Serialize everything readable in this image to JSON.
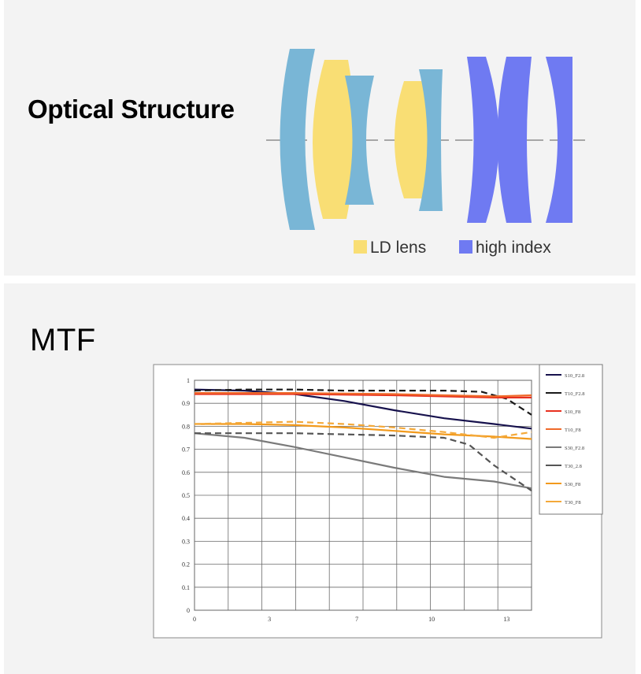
{
  "optical": {
    "title": "Optical Structure",
    "legend": [
      {
        "label": "LD lens",
        "color": "#f9de74"
      },
      {
        "label": "high index",
        "color": "#6f7af2"
      }
    ],
    "colors": {
      "standard": "#79b6d6",
      "ld": "#f9de74",
      "high_index": "#6f7af2"
    }
  },
  "mtf": {
    "title": "MTF"
  },
  "chart_data": {
    "type": "line",
    "title": "",
    "xlabel": "",
    "ylabel": "",
    "xlim": [
      0,
      13.5
    ],
    "ylim": [
      0,
      1
    ],
    "x_ticks": [
      "0",
      "3",
      "7",
      "10",
      "13"
    ],
    "x_tick_values": [
      0,
      3,
      6.5,
      9.5,
      12.5
    ],
    "y_ticks": [
      "0",
      "0.1",
      "0.2",
      "0.3",
      "0.4",
      "0.5",
      "0.6",
      "0.7",
      "0.8",
      "0.9",
      "1"
    ],
    "grid": true,
    "legend_position": "right",
    "series": [
      {
        "name": "S10_F2.8",
        "color": "#17124d",
        "dash": false,
        "x": [
          0,
          2,
          4,
          6,
          8,
          10,
          12,
          13.5
        ],
        "y": [
          0.96,
          0.955,
          0.94,
          0.91,
          0.87,
          0.835,
          0.81,
          0.79
        ]
      },
      {
        "name": "T10_F2.8",
        "color": "#1a1a1a",
        "dash": true,
        "x": [
          0,
          2,
          4,
          6,
          8,
          10,
          11.5,
          12.5,
          13.5
        ],
        "y": [
          0.955,
          0.96,
          0.96,
          0.955,
          0.955,
          0.955,
          0.95,
          0.92,
          0.85
        ]
      },
      {
        "name": "S10_F8",
        "color": "#e8301f",
        "dash": false,
        "x": [
          0,
          4,
          8,
          12,
          13.5
        ],
        "y": [
          0.94,
          0.94,
          0.935,
          0.925,
          0.925
        ]
      },
      {
        "name": "T10_F8",
        "color": "#ef6a2a",
        "dash": false,
        "x": [
          0,
          4,
          8,
          12,
          13.5
        ],
        "y": [
          0.945,
          0.945,
          0.94,
          0.93,
          0.935
        ]
      },
      {
        "name": "S30_F2.8",
        "color": "#7a7a7a",
        "dash": false,
        "x": [
          0,
          2,
          4,
          6,
          8,
          10,
          12,
          13.5
        ],
        "y": [
          0.77,
          0.75,
          0.71,
          0.665,
          0.62,
          0.58,
          0.56,
          0.53
        ]
      },
      {
        "name": "T30_2.8",
        "color": "#555555",
        "dash": true,
        "x": [
          0,
          4,
          8,
          10,
          11,
          12,
          13.5
        ],
        "y": [
          0.77,
          0.77,
          0.76,
          0.75,
          0.72,
          0.63,
          0.52
        ]
      },
      {
        "name": "S30_F8",
        "color": "#f29a1c",
        "dash": false,
        "x": [
          0,
          2,
          4,
          6,
          8,
          10,
          12,
          13.5
        ],
        "y": [
          0.81,
          0.81,
          0.805,
          0.795,
          0.78,
          0.765,
          0.755,
          0.745
        ]
      },
      {
        "name": "T30_F8",
        "color": "#f4a93a",
        "dash": true,
        "x": [
          0,
          2,
          4,
          6,
          8,
          10,
          12,
          13.5
        ],
        "y": [
          0.81,
          0.815,
          0.82,
          0.81,
          0.795,
          0.775,
          0.75,
          0.775
        ]
      }
    ]
  }
}
